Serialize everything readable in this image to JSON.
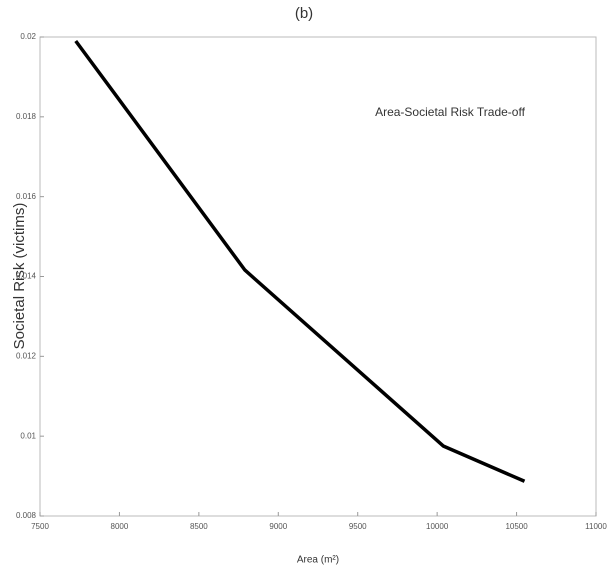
{
  "chart_data": {
    "type": "line",
    "title": "(b)",
    "annotation": "Area-Societal Risk Trade-off",
    "xlabel": "Area (m²)",
    "ylabel": "Societal Risk (victims)",
    "x": [
      7725,
      8000,
      8790,
      10040,
      10550
    ],
    "series": [
      {
        "name": "Area-Societal Risk Trade-off",
        "color": "#000000",
        "values": [
          0.0199,
          0.01842,
          0.01416,
          0.00975,
          0.00887
        ]
      }
    ],
    "xlim": [
      7500,
      11000
    ],
    "xticks": [
      7500,
      8000,
      8500,
      9000,
      9500,
      10000,
      10500,
      11000
    ],
    "ylim": [
      0.008,
      0.02
    ],
    "yticks": [
      0.008,
      0.01,
      0.012,
      0.014,
      0.016,
      0.018,
      0.02
    ],
    "grid": false
  }
}
